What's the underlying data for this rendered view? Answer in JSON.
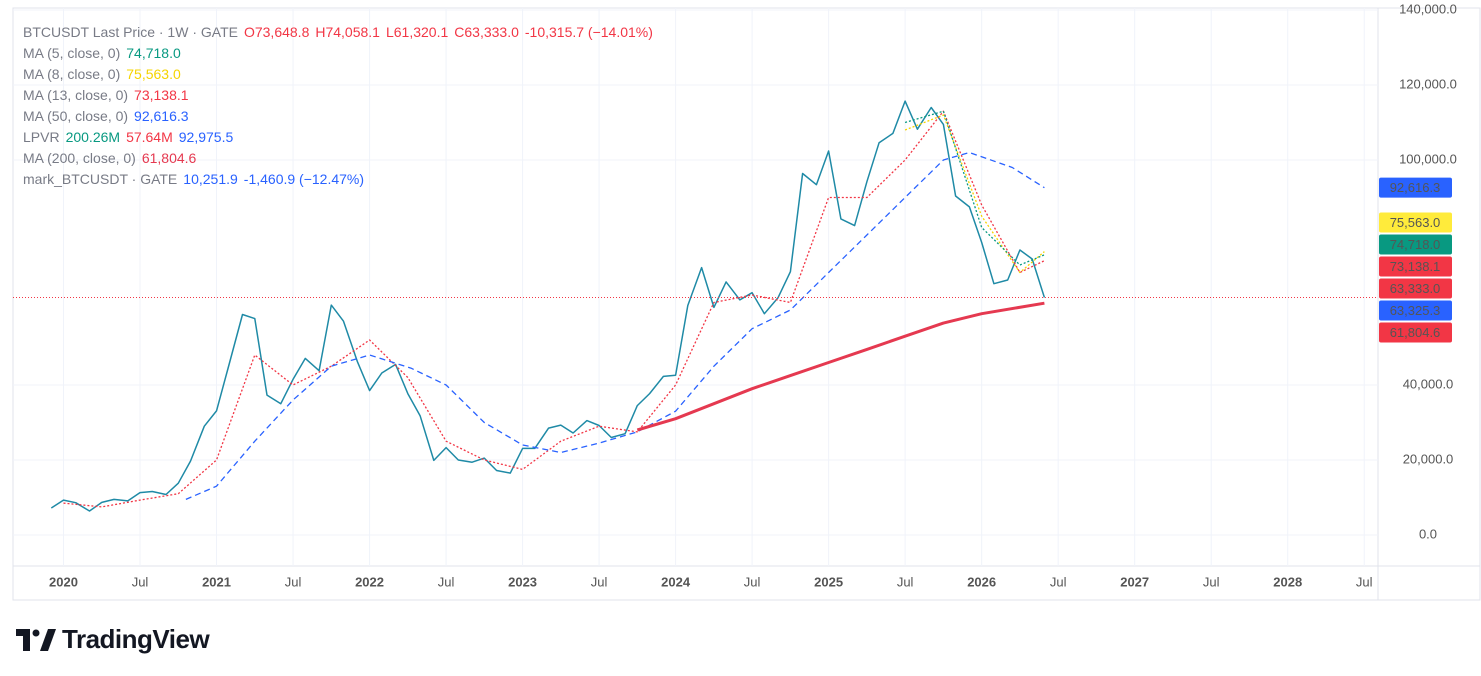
{
  "chart_data": {
    "type": "line",
    "legend": [
      {
        "label": "BTCUSDT Last Price · 1W · GATE",
        "parts": [
          {
            "text": "O73,648.8",
            "color": "#f23645"
          },
          {
            "text": "H74,058.1",
            "color": "#f23645"
          },
          {
            "text": "L61,320.1",
            "color": "#f23645"
          },
          {
            "text": "C63,333.0",
            "color": "#f23645"
          },
          {
            "text": "-10,315.7 (−14.01%)",
            "color": "#f23645"
          }
        ]
      },
      {
        "label": "MA (5, close, 0)",
        "parts": [
          {
            "text": "74,718.0",
            "color": "#089981"
          }
        ]
      },
      {
        "label": "MA (8, close, 0)",
        "parts": [
          {
            "text": "75,563.0",
            "color": "#f5d400"
          }
        ]
      },
      {
        "label": "MA (13, close, 0)",
        "parts": [
          {
            "text": "73,138.1",
            "color": "#f23645"
          }
        ]
      },
      {
        "label": "MA (50, close, 0)",
        "parts": [
          {
            "text": "92,616.3",
            "color": "#2962ff"
          }
        ]
      },
      {
        "label": "LPVR",
        "parts": [
          {
            "text": "200.26M",
            "color": "#089981"
          },
          {
            "text": "57.64M",
            "color": "#f23645"
          },
          {
            "text": "92,975.5",
            "color": "#2962ff"
          }
        ]
      },
      {
        "label": "MA (200, close, 0)",
        "parts": [
          {
            "text": "61,804.6",
            "color": "#e53950"
          }
        ]
      },
      {
        "label": "mark_BTCUSDT · GATE",
        "parts": [
          {
            "text": "10,251.9",
            "color": "#2962ff"
          },
          {
            "text": "-1,460.9 (−12.47%)",
            "color": "#2962ff"
          }
        ]
      }
    ],
    "xlim": [
      2019.67,
      2028.59
    ],
    "xticks": [
      {
        "value": 2020,
        "label": "2020"
      },
      {
        "value": 2020.5,
        "label": "Jul"
      },
      {
        "value": 2021,
        "label": "2021"
      },
      {
        "value": 2021.5,
        "label": "Jul"
      },
      {
        "value": 2022,
        "label": "2022"
      },
      {
        "value": 2022.5,
        "label": "Jul"
      },
      {
        "value": 2023,
        "label": "2023"
      },
      {
        "value": 2023.5,
        "label": "Jul"
      },
      {
        "value": 2024,
        "label": "2024"
      },
      {
        "value": 2024.5,
        "label": "Jul"
      },
      {
        "value": 2025,
        "label": "2025"
      },
      {
        "value": 2025.5,
        "label": "Jul"
      },
      {
        "value": 2026,
        "label": "2026"
      },
      {
        "value": 2026.5,
        "label": "Jul"
      },
      {
        "value": 2027,
        "label": "2027"
      },
      {
        "value": 2027.5,
        "label": "Jul"
      },
      {
        "value": 2028,
        "label": "2028"
      },
      {
        "value": 2028.5,
        "label": "Jul"
      }
    ],
    "ylim": [
      -8270,
      140530
    ],
    "yticks": [
      {
        "value": 0,
        "label": "0.0"
      },
      {
        "value": 20000,
        "label": "20,000.0"
      },
      {
        "value": 40000,
        "label": "40,000.0"
      },
      {
        "value": 100000,
        "label": "100,000.0"
      },
      {
        "value": 120000,
        "label": "120,000.0"
      },
      {
        "value": 140000,
        "label": "140,000.0"
      }
    ],
    "grid": true,
    "series": [
      {
        "name": "BTCUSDT",
        "color": "#1f8aa6",
        "style": "solid",
        "width": 1.5,
        "x": [
          2019.92,
          2020.0,
          2020.08,
          2020.17,
          2020.25,
          2020.33,
          2020.42,
          2020.5,
          2020.58,
          2020.67,
          2020.75,
          2020.83,
          2020.92,
          2021.0,
          2021.08,
          2021.17,
          2021.25,
          2021.33,
          2021.42,
          2021.5,
          2021.58,
          2021.67,
          2021.75,
          2021.83,
          2021.92,
          2022.0,
          2022.08,
          2022.17,
          2022.25,
          2022.33,
          2022.42,
          2022.5,
          2022.58,
          2022.67,
          2022.75,
          2022.83,
          2022.92,
          2023.0,
          2023.08,
          2023.17,
          2023.25,
          2023.33,
          2023.42,
          2023.5,
          2023.58,
          2023.67,
          2023.75,
          2023.83,
          2023.92,
          2024.0,
          2024.08,
          2024.17,
          2024.25,
          2024.33,
          2024.42,
          2024.5,
          2024.58,
          2024.67,
          2024.75,
          2024.83,
          2024.92,
          2025.0,
          2025.08,
          2025.17,
          2025.25,
          2025.33,
          2025.42,
          2025.5,
          2025.58,
          2025.67,
          2025.75,
          2025.83,
          2025.92,
          2026.0,
          2026.08,
          2026.17,
          2026.25,
          2026.33,
          2026.41
        ],
        "values": [
          7200,
          9300,
          8600,
          6400,
          8700,
          9500,
          9100,
          11300,
          11600,
          10800,
          13800,
          19700,
          29000,
          33100,
          45200,
          58800,
          57700,
          37300,
          35000,
          41500,
          47100,
          43800,
          61300,
          57000,
          46300,
          38500,
          43200,
          45500,
          37700,
          31800,
          19900,
          23300,
          20000,
          19400,
          20500,
          17200,
          16500,
          23100,
          23100,
          28500,
          29300,
          27200,
          30500,
          29200,
          26000,
          27000,
          34500,
          37700,
          42300,
          42600,
          61200,
          71300,
          60700,
          67500,
          62700,
          64600,
          59000,
          63300,
          70200,
          96400,
          93400,
          102400,
          84300,
          82500,
          94200,
          104600,
          107100,
          115700,
          108200,
          114000,
          109500,
          90400,
          87500,
          78000,
          67000,
          68000,
          76000,
          73600,
          63333
        ]
      },
      {
        "name": "MA (13, close, 0)",
        "color": "#f23645",
        "style": "dotted",
        "width": 1.3,
        "x": [
          2020.0,
          2020.25,
          2020.5,
          2020.75,
          2021.0,
          2021.25,
          2021.5,
          2021.75,
          2022.0,
          2022.25,
          2022.5,
          2022.75,
          2023.0,
          2023.25,
          2023.5,
          2023.75,
          2024.0,
          2024.25,
          2024.5,
          2024.75,
          2025.0,
          2025.25,
          2025.5,
          2025.75,
          2026.0,
          2026.25,
          2026.41
        ],
        "values": [
          8500,
          7500,
          9300,
          11000,
          20000,
          48000,
          40000,
          45000,
          52000,
          42000,
          25000,
          20000,
          17500,
          25000,
          29000,
          27500,
          40000,
          62000,
          64000,
          62000,
          90000,
          90000,
          100000,
          113000,
          88000,
          70000,
          73138.1
        ]
      },
      {
        "name": "MA (8, close, 0)",
        "color": "#f5d400",
        "style": "dotted",
        "width": 1.3,
        "x": [
          2025.5,
          2025.75,
          2026.0,
          2026.25,
          2026.41
        ],
        "values": [
          108000,
          112000,
          85000,
          70000,
          75563.0
        ]
      },
      {
        "name": "MA (5, close, 0)",
        "color": "#089981",
        "style": "dotted",
        "width": 1.3,
        "x": [
          2025.5,
          2025.75,
          2026.0,
          2026.25,
          2026.41
        ],
        "values": [
          110000,
          113000,
          82000,
          72000,
          74718.0
        ]
      },
      {
        "name": "MA (50, close, 0)",
        "color": "#2962ff",
        "style": "dashed",
        "width": 1.3,
        "x": [
          2020.8,
          2021.0,
          2021.25,
          2021.5,
          2021.75,
          2022.0,
          2022.27,
          2022.5,
          2022.75,
          2023.0,
          2023.25,
          2023.5,
          2023.75,
          2024.0,
          2024.25,
          2024.5,
          2024.75,
          2025.0,
          2025.25,
          2025.5,
          2025.75,
          2025.92,
          2026.2,
          2026.41
        ],
        "values": [
          9500,
          13000,
          25000,
          36000,
          45000,
          48000,
          44500,
          40000,
          30000,
          24000,
          22000,
          24500,
          27500,
          33000,
          45000,
          55000,
          60000,
          70000,
          80000,
          90000,
          100000,
          102000,
          98000,
          92616.3
        ]
      },
      {
        "name": "MA (200, close, 0)",
        "color": "#e53950",
        "style": "solid",
        "width": 3,
        "x": [
          2023.75,
          2024.0,
          2024.25,
          2024.5,
          2024.75,
          2025.0,
          2025.25,
          2025.5,
          2025.75,
          2026.0,
          2026.41
        ],
        "values": [
          28000,
          31000,
          35000,
          39000,
          42500,
          46000,
          49500,
          53000,
          56500,
          59000,
          61804.6
        ]
      }
    ],
    "price_tags": [
      {
        "value": 92616.3,
        "label": "92,616.3",
        "color": "#2962ff",
        "text_color": "#ffffff"
      },
      {
        "value": 75563.0,
        "label": "75,563.0",
        "color": "#ffeb3b",
        "text_color": "#131722"
      },
      {
        "value": 74718.0,
        "label": "74,718.0",
        "color": "#089981",
        "text_color": "#ffffff"
      },
      {
        "value": 73138.1,
        "label": "73,138.1",
        "color": "#f23645",
        "text_color": "#ffffff"
      },
      {
        "value": 63333.0,
        "label": "63,333.0",
        "color": "#f23645",
        "text_color": "#ffffff",
        "price_line": true
      },
      {
        "value": 63325.3,
        "label": "63,325.3",
        "color": "#2962ff",
        "text_color": "#ffffff"
      },
      {
        "value": 61804.6,
        "label": "61,804.6",
        "color": "#f23645",
        "text_color": "#ffffff"
      }
    ],
    "brand": "TradingView"
  }
}
